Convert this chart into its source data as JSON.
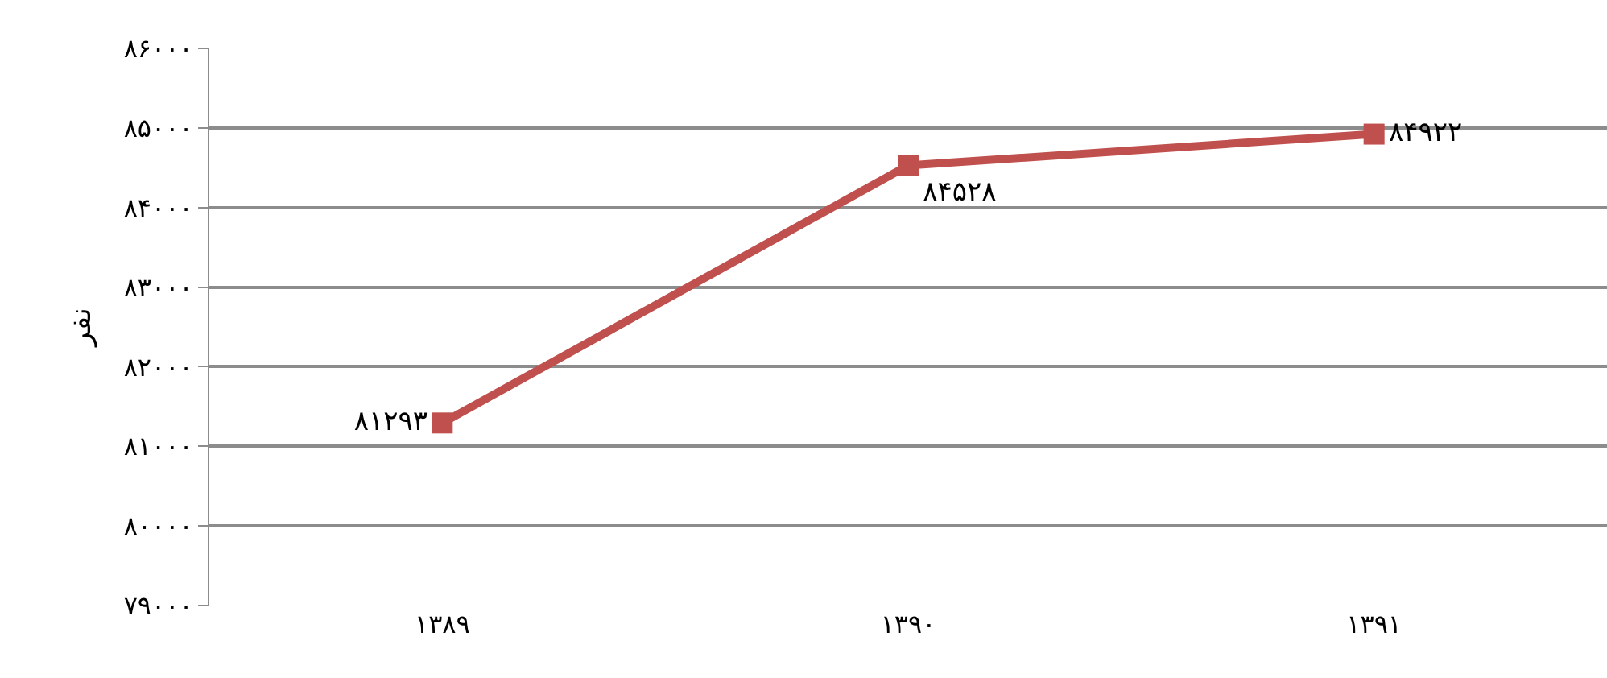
{
  "chart_data": {
    "type": "line",
    "ylabel": "نفر",
    "categories": [
      "۱۳۸۹",
      "۱۳۹۰",
      "۱۳۹۱"
    ],
    "series": [
      {
        "color": "#c0504d",
        "values": [
          81293,
          84528,
          84922
        ],
        "value_labels": [
          "۸۱۲۹۳",
          "۸۴۵۲۸",
          "۸۴۹۲۲"
        ]
      }
    ],
    "ylim": [
      79000,
      86000
    ],
    "yticks": [
      {
        "value": 79000,
        "label": "۷۹۰۰۰"
      },
      {
        "value": 80000,
        "label": "۸۰۰۰۰"
      },
      {
        "value": 81000,
        "label": "۸۱۰۰۰"
      },
      {
        "value": 82000,
        "label": "۸۲۰۰۰"
      },
      {
        "value": 83000,
        "label": "۸۳۰۰۰"
      },
      {
        "value": 84000,
        "label": "۸۴۰۰۰"
      },
      {
        "value": 85000,
        "label": "۸۵۰۰۰"
      },
      {
        "value": 86000,
        "label": "۸۶۰۰۰"
      }
    ],
    "grid": "y",
    "marker": "square",
    "line_style": "solid"
  }
}
